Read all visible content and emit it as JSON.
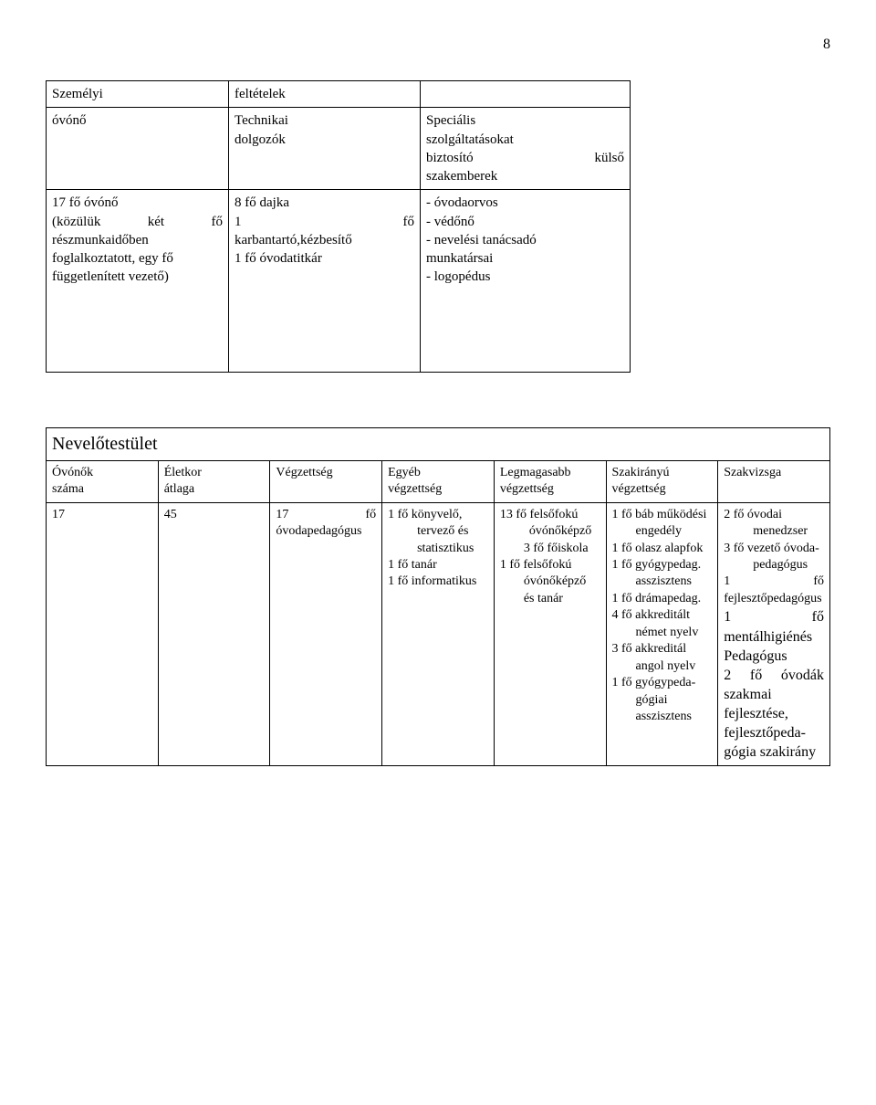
{
  "page_number": "8",
  "table1": {
    "header_row": {
      "personal": "Személyi",
      "conditions": "feltételek",
      "empty": ""
    },
    "second_row": {
      "col1": "óvónő",
      "col2_l1": "Technikai",
      "col2_l2": "dolgozók",
      "col3_l1": "Speciális",
      "col3_l2": "szolgáltatásokat",
      "col3_l3_left": "biztosító",
      "col3_l3_right": "külső",
      "col3_l4": "szakemberek"
    },
    "data_row": {
      "col1": {
        "l1": "17 fő óvónő",
        "l2_left": "(közülük",
        "l2_mid": "két",
        "l2_right": "fő",
        "l3": "részmunkaidőben",
        "l4": "foglalkoztatott, egy fő",
        "l5": "függetlenített vezető)"
      },
      "col2": {
        "l1": "8 fő dajka",
        "l2_left": "1",
        "l2_right": "fő",
        "l3": "karbantartó,kézbesítő",
        "l4": "1 fő óvodatitkár"
      },
      "col3": {
        "l1": "-  óvodaorvos",
        "l2": "- védőnő",
        "l3": "- nevelési tanácsadó",
        "l4": "   munkatársai",
        "l5": "- logopédus"
      }
    }
  },
  "table2": {
    "title": "Nevelőtestület",
    "headers": {
      "c1_l1": "Óvónők",
      "c1_l2": "száma",
      "c2_l1": "Életkor",
      "c2_l2": "átlaga",
      "c3": "Végzettség",
      "c4_l1": "Egyéb",
      "c4_l2": "végzettség",
      "c5_l1": "Legmagasabb",
      "c5_l2": "végzettség",
      "c6_l1": "Szakirányú",
      "c6_l2": "végzettség",
      "c7": "Szakvizsga"
    },
    "row": {
      "c1": "17",
      "c2": "45",
      "c3_left": "17",
      "c3_right": "fő",
      "c3_l2": "óvodapedagógus",
      "c4": {
        "l1": "1 fő könyvelő,",
        "l2": "tervező és",
        "l3": "statisztikus",
        "l4": "1 fő tanár",
        "l5": "1 fő informatikus"
      },
      "c5": {
        "l1": "13 fő felsőfokú",
        "l2": "óvónőképző",
        "l3": "3 fő főiskola",
        "l4": "1 fő felsőfokú",
        "l5": "óvónőképző",
        "l6": "és tanár"
      },
      "c6": {
        "l1": "1 fő báb működési",
        "l2": "engedély",
        "l3": "1 fő olasz alapfok",
        "l4": "1 fő gyógypedag.",
        "l5": "asszisztens",
        "l6": "1 fő drámapedag.",
        "l7": "4  fő  akkreditált",
        "l8": "német nyelv",
        "l9": "3   fő   akkreditál",
        "l10": "angol nyelv",
        "l11": "1  fő  gyógypeda-",
        "l12": "gógiai",
        "l13": "asszisztens"
      },
      "c7": {
        "l1": "2 fő óvodai",
        "l2": "menedzser",
        "l3": "3 fő  vezető óvoda-",
        "l4": "pedagógus",
        "l5_left": "1",
        "l5_right": "fő",
        "l6": "fejlesztőpedagógus",
        "l7_left": "1",
        "l7_right": "fő",
        "l8": "mentálhigiénés",
        "l9": "Pedagógus",
        "l10_left": "2",
        "l10_mid": "fő",
        "l10_right": "óvodák",
        "l11": "szakmai",
        "l12": "fejlesztése,",
        "l13": "fejlesztőpeda-",
        "l14": "gógia  szakirány"
      }
    }
  }
}
